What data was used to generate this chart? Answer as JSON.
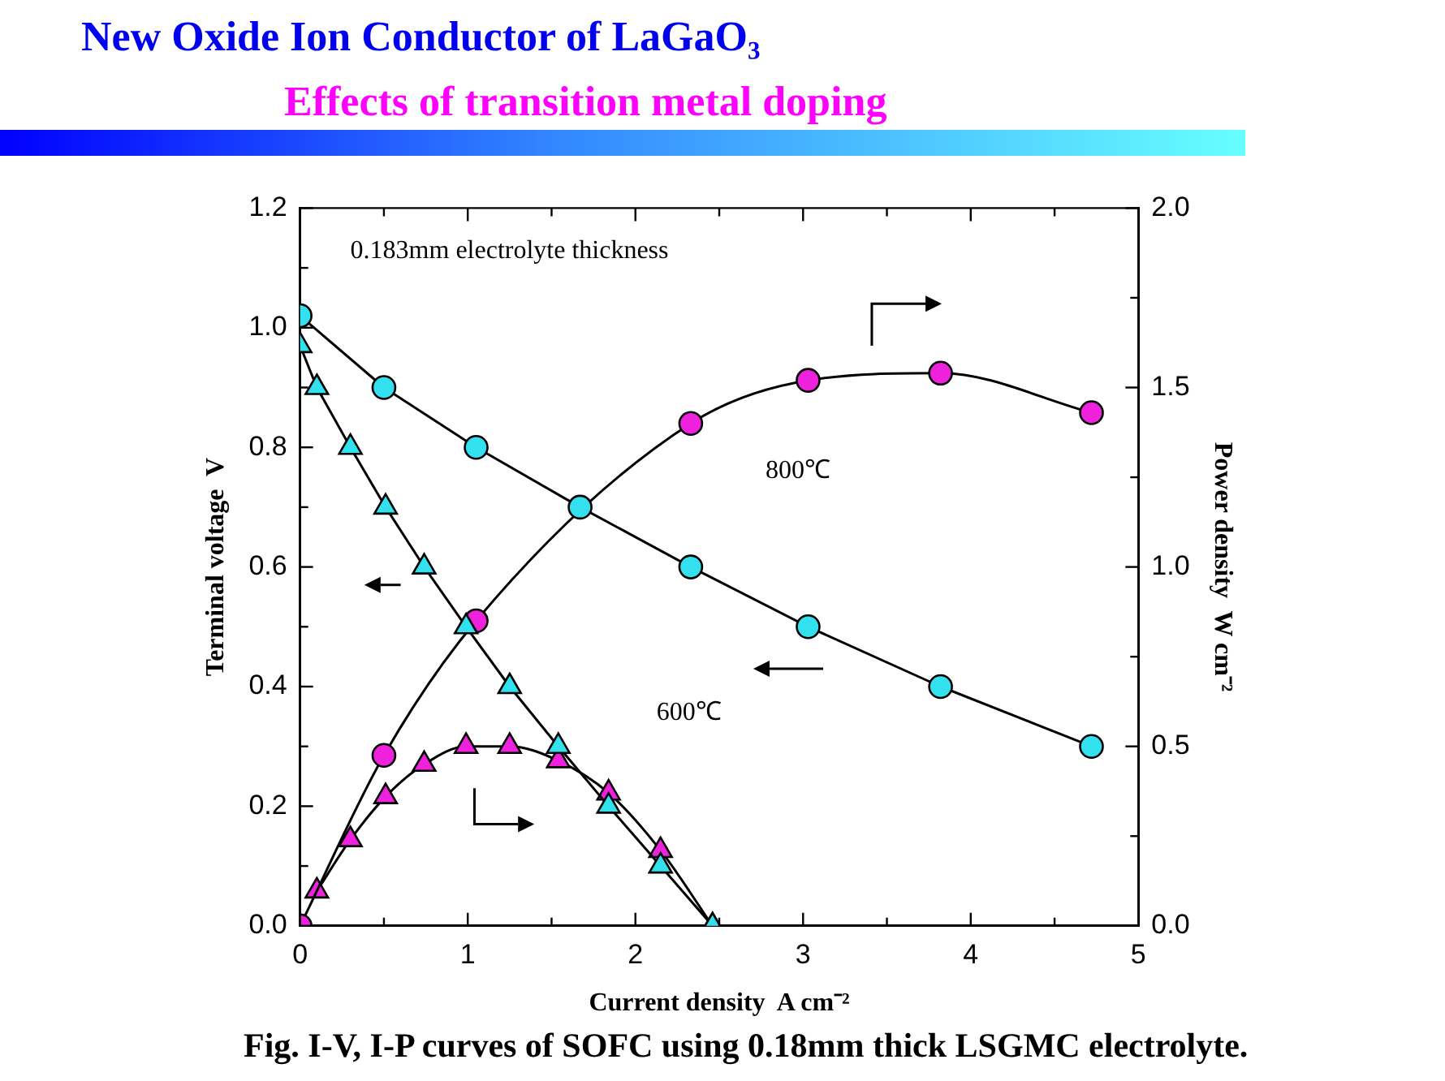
{
  "chart_data": {
    "type": "line",
    "title": "New Oxide Ion Conductor of LaGaO₃",
    "subtitle": "Effects of transition metal doping",
    "xlabel": "Current density  A cm⁻²",
    "ylabel": "Terminal voltage  V",
    "y2label": "Power density  W cm⁻²",
    "annotations": [
      "0.183mm electrolyte thickness",
      "800℃",
      "600℃",
      "Fig. I-V, I-P curves of SOFC using 0.18mm thick LSGMC electrolyte."
    ],
    "series": [
      {
        "color": "#33e0ee",
        "marker": "circle",
        "x": [
          0,
          0.5,
          1.05,
          1.67,
          2.33,
          3.03,
          3.82,
          4.72
        ],
        "values": [
          1.02,
          0.9,
          0.8,
          0.7,
          0.6,
          0.5,
          0.4,
          0.3
        ]
      },
      {
        "color": "#ee22dd",
        "marker": "circle",
        "axis": "y2",
        "x": [
          0,
          0.5,
          1.05,
          1.67,
          2.33,
          3.03,
          3.82,
          4.72
        ],
        "values": [
          0,
          0.475,
          0.85,
          null,
          1.4,
          1.52,
          1.54,
          1.43
        ]
      },
      {
        "color": "#33e0ee",
        "marker": "triangle",
        "x": [
          0,
          0.1,
          0.3,
          0.51,
          0.74,
          0.99,
          1.25,
          1.54,
          1.84,
          2.15,
          2.46
        ],
        "values": [
          0.97,
          0.9,
          0.8,
          0.7,
          0.6,
          0.5,
          0.4,
          0.3,
          0.2,
          0.1,
          0
        ]
      },
      {
        "color": "#ee22dd",
        "marker": "triangle",
        "axis": "y2",
        "x": [
          0.1,
          0.3,
          0.51,
          0.74,
          0.99,
          1.25,
          1.54,
          1.84,
          2.15,
          2.46
        ],
        "values": [
          0.097,
          0.24,
          0.36,
          0.45,
          0.5,
          0.5,
          0.46,
          0.37,
          0.21,
          0
        ]
      }
    ],
    "xlim": [
      0,
      5
    ],
    "xticks": [
      0,
      {
        "value": 0.5,
        "label": null
      },
      1,
      {
        "value": 1.5,
        "label": null
      },
      2,
      {
        "value": 2.5,
        "label": null
      },
      3,
      {
        "value": 3.5,
        "label": null
      },
      4,
      {
        "value": 4.5,
        "label": null
      },
      5
    ],
    "ylim": [
      0,
      1.2
    ],
    "yticks": [
      {
        "value": 0,
        "label": "0.0"
      },
      {
        "value": 0.1,
        "label": null
      },
      {
        "value": 0.2,
        "label": "0.2"
      },
      {
        "value": 0.3,
        "label": null
      },
      {
        "value": 0.4,
        "label": "0.4"
      },
      {
        "value": 0.5,
        "label": null
      },
      {
        "value": 0.6,
        "label": "0.6"
      },
      {
        "value": 0.7,
        "label": null
      },
      {
        "value": 0.8,
        "label": "0.8"
      },
      {
        "value": 0.9,
        "label": null
      },
      {
        "value": 1,
        "label": "1.0"
      },
      {
        "value": 1.1,
        "label": null
      },
      {
        "value": 1.2,
        "label": "1.2"
      }
    ],
    "y2lim": [
      0,
      2
    ],
    "y2ticks": [
      {
        "value": 0,
        "label": "0.0"
      },
      {
        "value": 0.25,
        "label": null
      },
      {
        "value": 0.5,
        "label": "0.5"
      },
      {
        "value": 0.75,
        "label": null
      },
      {
        "value": 1,
        "label": "1.0"
      },
      {
        "value": 1.25,
        "label": null
      },
      {
        "value": 1.5,
        "label": "1.5"
      },
      {
        "value": 1.75,
        "label": null
      },
      {
        "value": 2,
        "label": "2.0"
      }
    ],
    "grid": false,
    "legend": false
  }
}
